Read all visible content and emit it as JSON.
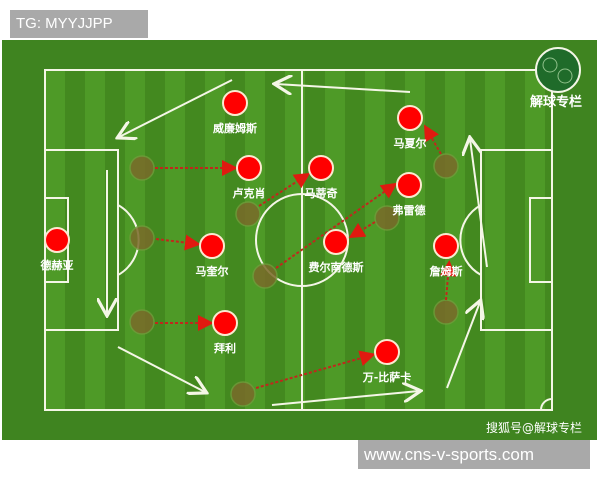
{
  "header": {
    "tg_label": "TG: MYYJJPP"
  },
  "logo": {
    "text": "解球专栏"
  },
  "watermark": "搜狐号@解球专栏",
  "footer": {
    "site": "www.cns-v-sports.com"
  },
  "colors": {
    "player": "#ff0000",
    "ghost": "#7a6a2a",
    "pitch_light": "#4e9a27",
    "pitch_dark": "#43891f",
    "line": "#f4f6e6",
    "pass": "#c0281c"
  },
  "players": [
    {
      "name": "德赫亚"
    },
    {
      "name": "威廉姆斯"
    },
    {
      "name": "卢克肖"
    },
    {
      "name": "马奎尔"
    },
    {
      "name": "拜利"
    },
    {
      "name": "马蒂奇"
    },
    {
      "name": "费尔南德斯"
    },
    {
      "name": "弗雷德"
    },
    {
      "name": "马夏尔"
    },
    {
      "name": "詹姆斯"
    },
    {
      "name": "万-比萨卡"
    }
  ]
}
